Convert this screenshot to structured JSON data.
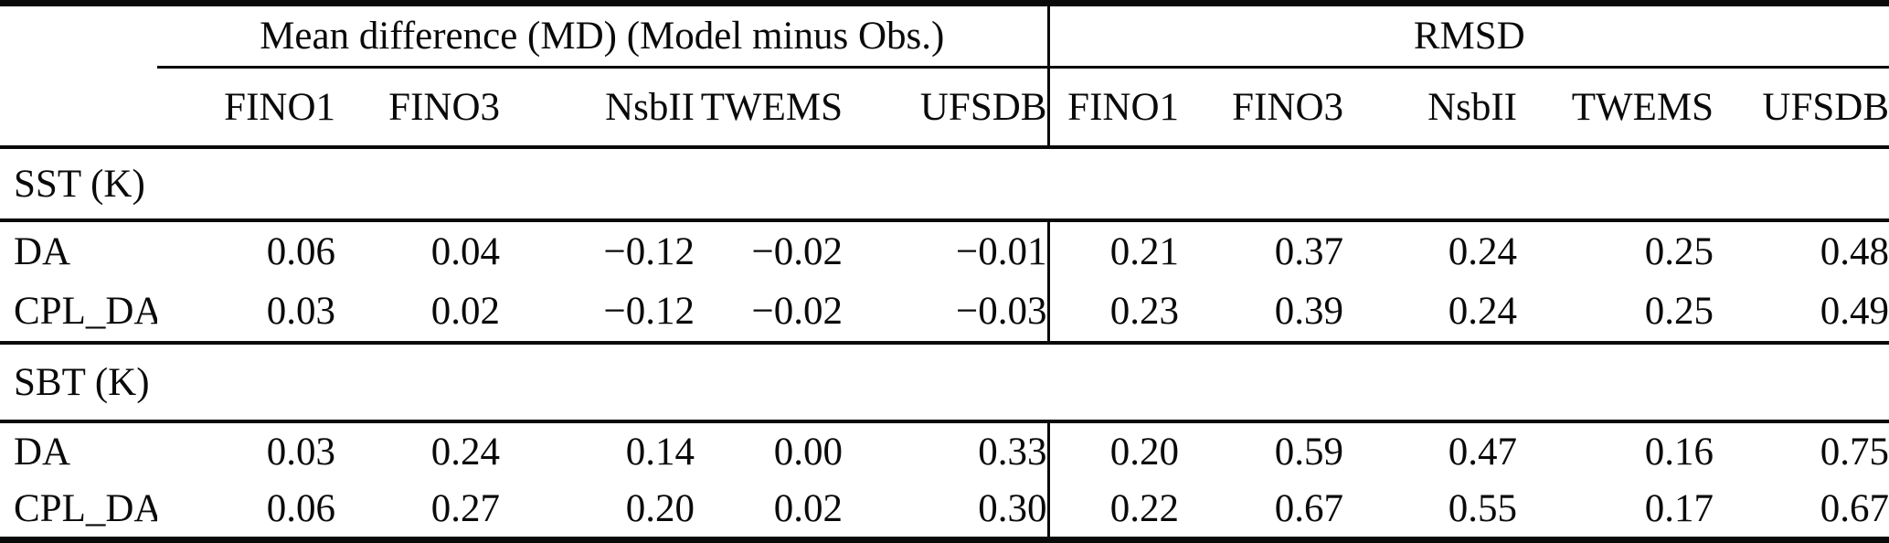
{
  "table": {
    "group_headers": {
      "md": "Mean difference (MD) (Model minus Obs.)",
      "rmsd": "RMSD"
    },
    "stations": [
      "FINO1",
      "FINO3",
      "NsbII",
      "TWEMS",
      "UFSDB"
    ],
    "sections": [
      {
        "title": "SST (K)",
        "rows": [
          {
            "label": "DA",
            "md": [
              "0.06",
              "0.04",
              "−0.12",
              "−0.02",
              "−0.01"
            ],
            "rmsd": [
              "0.21",
              "0.37",
              "0.24",
              "0.25",
              "0.48"
            ]
          },
          {
            "label": "CPL_DA",
            "md": [
              "0.03",
              "0.02",
              "−0.12",
              "−0.02",
              "−0.03"
            ],
            "rmsd": [
              "0.23",
              "0.39",
              "0.24",
              "0.25",
              "0.49"
            ]
          }
        ]
      },
      {
        "title": "SBT (K)",
        "rows": [
          {
            "label": "DA",
            "md": [
              "0.03",
              "0.24",
              "0.14",
              "0.00",
              "0.33"
            ],
            "rmsd": [
              "0.20",
              "0.59",
              "0.47",
              "0.16",
              "0.75"
            ]
          },
          {
            "label": "CPL_DA",
            "md": [
              "0.06",
              "0.27",
              "0.20",
              "0.02",
              "0.30"
            ],
            "rmsd": [
              "0.22",
              "0.67",
              "0.55",
              "0.17",
              "0.67"
            ]
          }
        ]
      }
    ]
  }
}
